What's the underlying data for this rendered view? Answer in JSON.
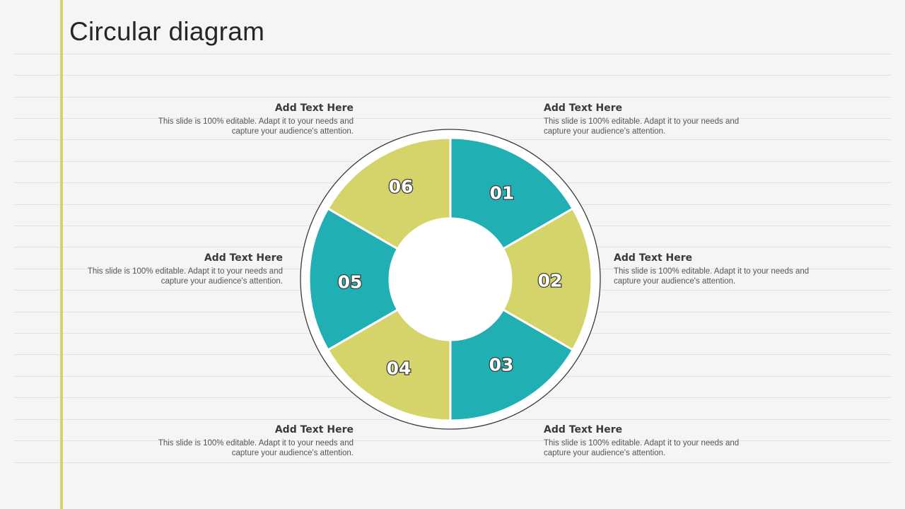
{
  "title": "Circular diagram",
  "colors": {
    "teal": "#20afb3",
    "olive": "#d5d46b",
    "accent_bar": "#d4d46a"
  },
  "segments": [
    {
      "label": "01",
      "color": "teal"
    },
    {
      "label": "02",
      "color": "olive"
    },
    {
      "label": "03",
      "color": "teal"
    },
    {
      "label": "04",
      "color": "olive"
    },
    {
      "label": "05",
      "color": "teal"
    },
    {
      "label": "06",
      "color": "olive"
    }
  ],
  "text_blocks": [
    {
      "heading": "Add Text Here",
      "body": "This slide is 100% editable. Adapt it to your needs and capture your audience's attention."
    },
    {
      "heading": "Add Text Here",
      "body": "This slide is 100% editable. Adapt it to your needs and capture your audience's attention."
    },
    {
      "heading": "Add Text Here",
      "body": "This slide is 100% editable. Adapt it to your needs and capture your audience's attention."
    },
    {
      "heading": "Add Text Here",
      "body": "This slide is 100% editable. Adapt it to your needs and capture your audience's attention."
    },
    {
      "heading": "Add Text Here",
      "body": "This slide is 100% editable. Adapt it to your needs and capture your audience's attention."
    },
    {
      "heading": "Add Text Here",
      "body": "This slide is 100% editable. Adapt it to your needs and capture your audience's attention."
    }
  ]
}
